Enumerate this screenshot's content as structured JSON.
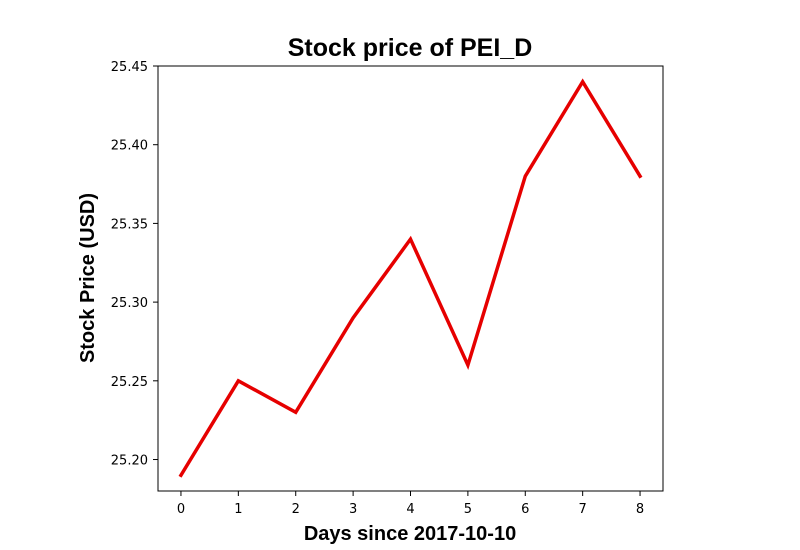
{
  "chart_data": {
    "type": "line",
    "title": "Stock price of PEI_D",
    "xlabel": "Days since 2017-10-10",
    "ylabel": "Stock Price (USD)",
    "x": [
      0,
      1,
      2,
      3,
      4,
      5,
      6,
      7,
      8
    ],
    "series": [
      {
        "values": [
          25.19,
          25.25,
          25.23,
          25.29,
          25.34,
          25.26,
          25.38,
          25.44,
          25.38
        ],
        "color": "#e60000"
      }
    ],
    "xlim": [
      -0.4,
      8.4
    ],
    "ylim": [
      25.18,
      25.45
    ],
    "xticks": [
      0,
      1,
      2,
      3,
      4,
      5,
      6,
      7,
      8
    ],
    "xtick_labels": [
      "0",
      "1",
      "2",
      "3",
      "4",
      "5",
      "6",
      "7",
      "8"
    ],
    "yticks": [
      25.2,
      25.25,
      25.3,
      25.35,
      25.4,
      25.45
    ],
    "ytick_labels": [
      "25.20",
      "25.25",
      "25.30",
      "25.35",
      "25.40",
      "25.45"
    ],
    "grid": false,
    "legend": false
  }
}
